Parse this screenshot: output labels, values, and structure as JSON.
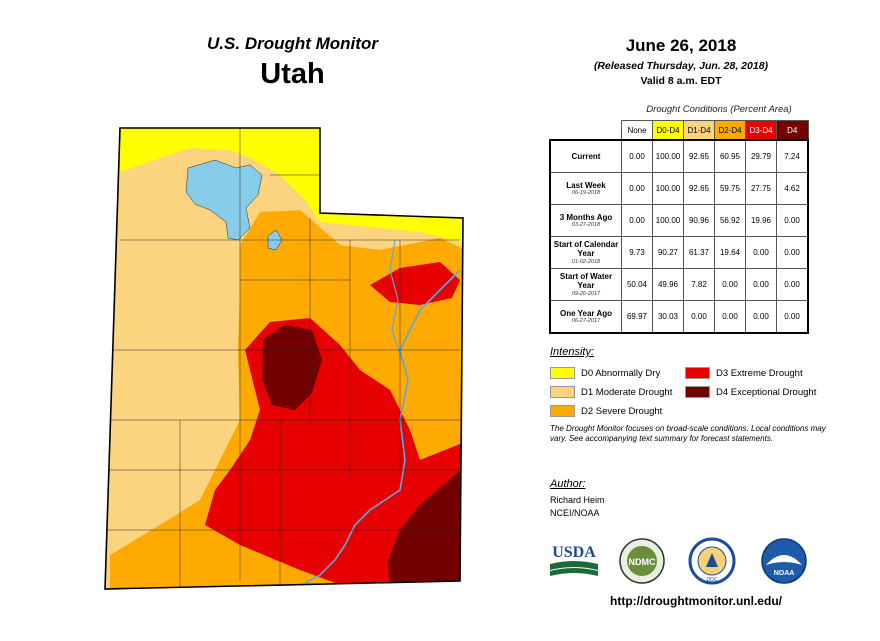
{
  "header": {
    "title": "U.S. Drought Monitor",
    "state": "Utah"
  },
  "date": "June 26, 2018",
  "released": "(Released Thursday, Jun. 28, 2018)",
  "valid": "Valid 8 a.m. EDT",
  "table": {
    "caption": "Drought Conditions (Percent Area)",
    "columns": [
      {
        "label": "None",
        "color": "#ffffff"
      },
      {
        "label": "D0-D4",
        "color": "#ffff00"
      },
      {
        "label": "D1-D4",
        "color": "#fcd37f"
      },
      {
        "label": "D2-D4",
        "color": "#ffaa00"
      },
      {
        "label": "D3-D4",
        "color": "#e60000"
      },
      {
        "label": "D4",
        "color": "#730000"
      }
    ],
    "rows": [
      {
        "label": "Current",
        "sub": "",
        "values": [
          "0.00",
          "100.00",
          "92.65",
          "60.95",
          "29.79",
          "7.24"
        ]
      },
      {
        "label": "Last Week",
        "sub": "06-19-2018",
        "values": [
          "0.00",
          "100.00",
          "92.65",
          "59.75",
          "27.75",
          "4.62"
        ]
      },
      {
        "label": "3 Months Ago",
        "sub": "03-27-2018",
        "values": [
          "0.00",
          "100.00",
          "90.96",
          "56.92",
          "19.96",
          "0.00"
        ]
      },
      {
        "label": "Start of Calendar Year",
        "sub": "01-02-2018",
        "values": [
          "9.73",
          "90.27",
          "61.37",
          "19.64",
          "0.00",
          "0.00"
        ]
      },
      {
        "label": "Start of Water Year",
        "sub": "09-26-2017",
        "values": [
          "50.04",
          "49.96",
          "7.82",
          "0.00",
          "0.00",
          "0.00"
        ]
      },
      {
        "label": "One Year Ago",
        "sub": "06-27-2017",
        "values": [
          "69.97",
          "30.03",
          "0.00",
          "0.00",
          "0.00",
          "0.00"
        ]
      }
    ]
  },
  "legend": {
    "title": "Intensity:",
    "items": [
      {
        "label": "D0 Abnormally Dry",
        "color": "#ffff00"
      },
      {
        "label": "D1 Moderate Drought",
        "color": "#fcd37f"
      },
      {
        "label": "D2 Severe Drought",
        "color": "#ffaa00"
      },
      {
        "label": "D3 Extreme Drought",
        "color": "#e60000"
      },
      {
        "label": "D4 Exceptional Drought",
        "color": "#730000"
      }
    ]
  },
  "note": "The Drought Monitor focuses on broad-scale conditions. Local conditions may vary. See accompanying text summary for forecast statements.",
  "author": {
    "title": "Author:",
    "name": "Richard Heim",
    "org": "NCEI/NOAA"
  },
  "logos": {
    "usda": "USDA",
    "ndmc": "NDMC",
    "doc": "DOC",
    "noaa": "NOAA"
  },
  "url": "http://droughtmonitor.unl.edu/",
  "colors": {
    "water": "#87cdea",
    "boundary": "#2b2b2b",
    "river": "#5aa9e6"
  }
}
